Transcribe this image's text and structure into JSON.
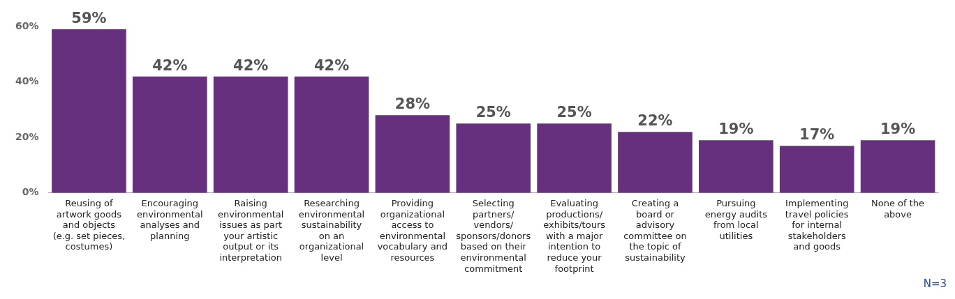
{
  "chart_data": {
    "type": "bar",
    "categories": [
      "Reusing of artwork goods and objects (e.g. set pieces, costumes)",
      "Encouraging environmental analyses and planning",
      "Raising environmental issues as part your artistic output or its interpretation",
      "Researching environmental sustainability on an organizational level",
      "Providing organizational access to environmental vocabulary and resources",
      "Selecting partners/ vendors/ sponsors/donors based on their environmental commitment",
      "Evaluating productions/ exhibits/tours with a major intention to reduce your footprint",
      "Creating a board or advisory committee on the topic of sustainability",
      "Pursuing energy audits from local utilities",
      "Implementing travel policies for internal stakeholders and goods",
      "None of the above"
    ],
    "values": [
      59,
      42,
      42,
      42,
      28,
      25,
      25,
      22,
      19,
      17,
      19
    ],
    "value_labels": [
      "59%",
      "42%",
      "42%",
      "42%",
      "28%",
      "25%",
      "25%",
      "22%",
      "19%",
      "17%",
      "19%"
    ],
    "color": "#66307f",
    "ylim": [
      0,
      60
    ],
    "yticks": [
      {
        "value": 0,
        "label": "0%"
      },
      {
        "value": 20,
        "label": "20%"
      },
      {
        "value": 40,
        "label": "40%"
      },
      {
        "value": 60,
        "label": "60%"
      }
    ],
    "grid": false,
    "legend": false,
    "annotations": [
      "N=3"
    ]
  }
}
